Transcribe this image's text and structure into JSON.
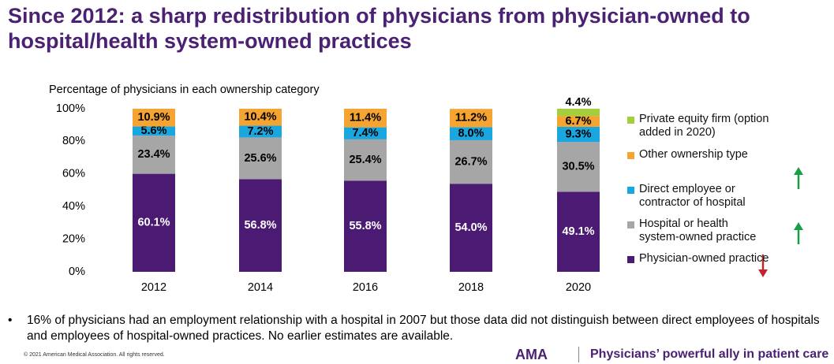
{
  "title": "Since 2012: a sharp redistribution of physicians from physician-owned to hospital/health system-owned practices",
  "chart_data": {
    "type": "stacked_bar",
    "y_label": "Percentage of physicians in each ownership category",
    "categories": [
      "2012",
      "2014",
      "2016",
      "2018",
      "2020"
    ],
    "ylim": [
      0,
      100
    ],
    "yticks": [
      {
        "value": 0,
        "label": "0%"
      },
      {
        "value": 20,
        "label": "20%"
      },
      {
        "value": 40,
        "label": "40%"
      },
      {
        "value": 60,
        "label": "60%"
      },
      {
        "value": 80,
        "label": "80%"
      },
      {
        "value": 100,
        "label": "100%"
      }
    ],
    "series": [
      {
        "name": "Physician-owned practice",
        "color": "#4b1a72",
        "values": [
          60.1,
          56.8,
          55.8,
          54.0,
          49.1
        ],
        "value_labels": [
          "60.1%",
          "56.8%",
          "55.8%",
          "54.0%",
          "49.1%"
        ]
      },
      {
        "name": "Hospital or health system-owned practice",
        "color": "#a6a6a6",
        "values": [
          23.4,
          25.6,
          25.4,
          26.7,
          30.5
        ],
        "value_labels": [
          "23.4%",
          "25.6%",
          "25.4%",
          "26.7%",
          "30.5%"
        ]
      },
      {
        "name": "Direct employee or contractor of hospital",
        "color": "#1aa7e0",
        "values": [
          5.6,
          7.2,
          7.4,
          8.0,
          9.3
        ],
        "value_labels": [
          "5.6%",
          "7.2%",
          "7.4%",
          "8.0%",
          "9.3%"
        ]
      },
      {
        "name": "Other ownership type",
        "color": "#f5a432",
        "values": [
          10.9,
          10.4,
          11.4,
          11.2,
          6.7
        ],
        "value_labels": [
          "10.9%",
          "10.4%",
          "11.4%",
          "11.2%",
          "6.7%"
        ]
      },
      {
        "name": "Private equity firm (option added in 2020)",
        "color": "#a4cf3c",
        "values": [
          null,
          null,
          null,
          null,
          4.4
        ],
        "value_labels": [
          null,
          null,
          null,
          null,
          "4.4%"
        ]
      }
    ]
  },
  "footnote": "16% of physicians had an employment relationship with a hospital in 2007 but those data did not distinguish between direct employees of hospitals and employees of hospital-owned practices. No earlier estimates are available.",
  "copyright": "© 2021 American Medical Association. All rights reserved.",
  "logo": "AMA",
  "tagline": "Physicians’ powerful ally in patient care"
}
